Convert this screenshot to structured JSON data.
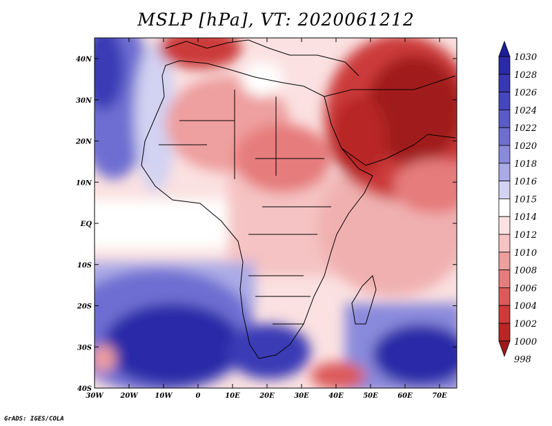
{
  "title": "MSLP [hPa], VT: 2020061212",
  "credit": "GrADS: IGES/COLA",
  "map": {
    "region": "Africa and surroundings",
    "lon_range": [
      -30,
      75
    ],
    "lat_range": [
      -40,
      45
    ],
    "lon_ticks": [
      "30W",
      "20W",
      "10W",
      "0",
      "10E",
      "20E",
      "30E",
      "40E",
      "50E",
      "60E",
      "70E"
    ],
    "lat_ticks": [
      "40N",
      "30N",
      "20N",
      "10N",
      "EQ",
      "10S",
      "20S",
      "30S",
      "40S"
    ]
  },
  "colorbar": {
    "levels": [
      "1030",
      "1028",
      "1026",
      "1024",
      "1022",
      "1020",
      "1018",
      "1016",
      "1015",
      "1014",
      "1012",
      "1010",
      "1008",
      "1006",
      "1004",
      "1002",
      "1000",
      "998"
    ],
    "colors": [
      "#1e1e9a",
      "#2a2aa8",
      "#3737b4",
      "#4646c0",
      "#5a5ac8",
      "#6e6ed2",
      "#8a8adc",
      "#aaaae6",
      "#d2d2f2",
      "#ffffff",
      "#fbe1e1",
      "#f5c3c3",
      "#ee9f9f",
      "#e67c7c",
      "#dc5a5a",
      "#cc3a3a",
      "#b82626",
      "#a01a1a"
    ]
  }
}
